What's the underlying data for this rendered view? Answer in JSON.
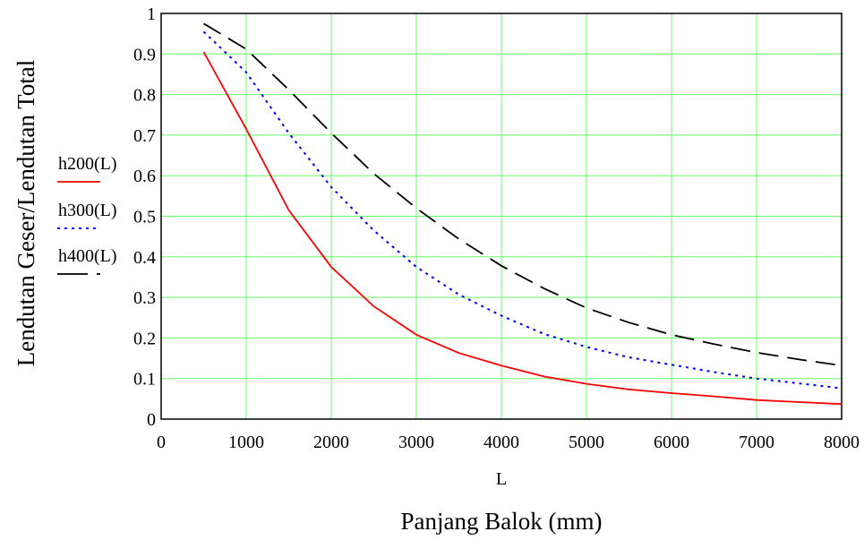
{
  "chart_data": {
    "type": "line",
    "title": "",
    "xlabel": "L",
    "xlabel_secondary": "Panjang Balok (mm)",
    "ylabel": "Lendutan Geser/Lendutan Total",
    "xlim": [
      0,
      8000
    ],
    "ylim": [
      0,
      1
    ],
    "x_ticks": [
      0,
      1000,
      2000,
      3000,
      4000,
      5000,
      6000,
      7000,
      8000
    ],
    "y_ticks": [
      0,
      0.1,
      0.2,
      0.3,
      0.4,
      0.5,
      0.6,
      0.7,
      0.8,
      0.9,
      1
    ],
    "x_tick_labels": [
      "0",
      "1000",
      "2000",
      "3000",
      "4000",
      "5000",
      "6000",
      "7000",
      "8000"
    ],
    "y_tick_labels": [
      "0",
      "0.1",
      "0.2",
      "0.3",
      "0.4",
      "0.5",
      "0.6",
      "0.7",
      "0.8",
      "0.9",
      "1"
    ],
    "grid": true,
    "grid_color": "#66ff66",
    "legend_position": "left",
    "x": [
      500,
      1000,
      1500,
      2000,
      2500,
      3000,
      3500,
      4000,
      4500,
      5000,
      5500,
      6000,
      6500,
      7000,
      7500,
      8000
    ],
    "series": [
      {
        "name": "h200(L)",
        "color": "#ff0000",
        "style": "solid",
        "values": [
          0.905,
          0.715,
          0.515,
          0.375,
          0.278,
          0.208,
          0.163,
          0.132,
          0.105,
          0.087,
          0.073,
          0.064,
          0.056,
          0.047,
          0.042,
          0.037
        ]
      },
      {
        "name": "h300(L)",
        "color": "#0000ff",
        "style": "dotted",
        "values": [
          0.955,
          0.855,
          0.705,
          0.572,
          0.465,
          0.375,
          0.307,
          0.255,
          0.21,
          0.178,
          0.152,
          0.134,
          0.116,
          0.1,
          0.088,
          0.076
        ]
      },
      {
        "name": "h400(L)",
        "color": "#000000",
        "style": "dashed",
        "values": [
          0.975,
          0.912,
          0.812,
          0.705,
          0.605,
          0.52,
          0.444,
          0.378,
          0.322,
          0.274,
          0.238,
          0.208,
          0.185,
          0.164,
          0.147,
          0.132
        ]
      }
    ]
  }
}
